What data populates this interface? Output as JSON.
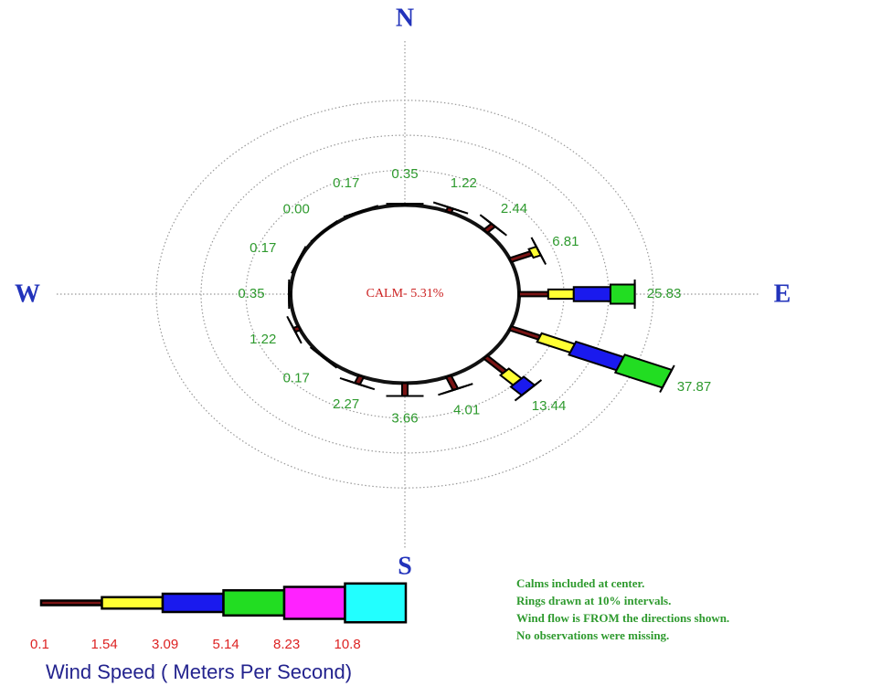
{
  "chart_data": {
    "type": "windrose",
    "compass": [
      "N",
      "E",
      "S",
      "W"
    ],
    "calm_label": "CALM- 5.31%",
    "calm": 5.31,
    "directions": 16,
    "values": [
      0.35,
      1.22,
      2.44,
      6.81,
      25.83,
      37.87,
      13.44,
      4.01,
      3.66,
      2.27,
      0.17,
      1.22,
      0.35,
      0.17,
      0,
      0.17
    ],
    "value_labels": [
      "0.35",
      "1.22",
      "2.44",
      "6.81",
      "25.83",
      "37.87",
      "13.44",
      "4.01",
      "3.66",
      "2.27",
      "0.17",
      "1.22",
      "0.35",
      "0.17",
      "0.00",
      "0.17"
    ],
    "series": [
      {
        "color": "#7a1414",
        "values": [
          0.35,
          1.22,
          2.44,
          5,
          6.5,
          7,
          6,
          4.01,
          3.66,
          2.27,
          0.17,
          1.22,
          0.35,
          0.17,
          0,
          0.17
        ]
      },
      {
        "color": "#ffff33",
        "values": [
          0,
          0,
          0,
          1.81,
          5.7,
          8,
          4,
          0,
          0,
          0,
          0,
          0,
          0,
          0,
          0,
          0
        ]
      },
      {
        "color": "#1a1aee",
        "values": [
          0,
          0,
          0,
          0,
          8.2,
          11.5,
          3.44,
          0,
          0,
          0,
          0,
          0,
          0,
          0,
          0,
          0
        ]
      },
      {
        "color": "#22dd22",
        "values": [
          0,
          0,
          0,
          0,
          5.43,
          11.37,
          0,
          0,
          0,
          0,
          0,
          0,
          0,
          0,
          0,
          0
        ]
      },
      {
        "color": "#ff22ff",
        "values": [
          0,
          0,
          0,
          0,
          0,
          0,
          0,
          0,
          0,
          0,
          0,
          0,
          0,
          0,
          0,
          0
        ]
      },
      {
        "color": "#22ffff",
        "values": [
          0,
          0,
          0,
          0,
          0,
          0,
          0,
          0,
          0,
          0,
          0,
          0,
          0,
          0,
          0,
          0
        ]
      }
    ],
    "rings": [
      10,
      20,
      30
    ],
    "speed_bins": [
      0.1,
      1.54,
      3.09,
      5.14,
      8.23,
      10.8
    ],
    "legend_title": "Wind Speed  ( Meters Per Second)",
    "notes": [
      "Calms included at center.",
      "Rings drawn at 10% intervals.",
      "Wind flow is FROM  the directions shown.",
      "No observations were missing."
    ]
  }
}
